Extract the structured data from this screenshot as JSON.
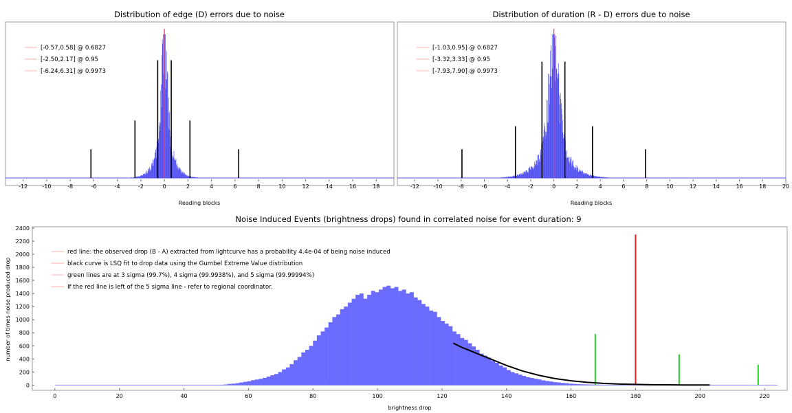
{
  "chart_data": [
    {
      "type": "bar",
      "title": "Distribution of edge (D) errors due to noise",
      "xlabel": "Reading blocks",
      "ylabel": "",
      "xlim": [
        -13.5,
        19.5
      ],
      "xticks": [
        "-12",
        "-10",
        "-8",
        "-6",
        "-4",
        "-2",
        "0",
        "2",
        "4",
        "6",
        "8",
        "10",
        "12",
        "14",
        "16",
        "18"
      ],
      "xtick_values": [
        -12,
        -10,
        -8,
        -6,
        -4,
        -2,
        0,
        2,
        4,
        6,
        8,
        10,
        12,
        14,
        16,
        18
      ],
      "grid": false,
      "legend": "top-left",
      "series": [
        {
          "name": "[-0.57,0.58] @ 0.6827",
          "color": "#ff9c9c"
        },
        {
          "name": "[-2.50,2.17] @ 0.95",
          "color": "#ff9c9c"
        },
        {
          "name": "[-6.24,6.31] @ 0.9973",
          "color": "#ff9c9c"
        }
      ],
      "histogram": {
        "center": 0,
        "width": 0.55,
        "tail_width": 3.0,
        "peak": 1.0,
        "color": "#4d4df0"
      },
      "markers": [
        {
          "x": -0.57,
          "height": 0.82
        },
        {
          "x": 0.58,
          "height": 0.82
        },
        {
          "x": -2.5,
          "height": 0.4
        },
        {
          "x": 2.17,
          "height": 0.4
        },
        {
          "x": -6.24,
          "height": 0.2
        },
        {
          "x": 6.31,
          "height": 0.2
        }
      ],
      "redline": 0
    },
    {
      "type": "bar",
      "title": "Distribution of duration (R - D) errors due to noise",
      "xlabel": "Reading blocks",
      "ylabel": "",
      "xlim": [
        -13.5,
        20
      ],
      "xticks": [
        "-12",
        "-10",
        "-8",
        "-6",
        "-4",
        "-2",
        "0",
        "2",
        "4",
        "6",
        "8",
        "10",
        "12",
        "14",
        "16",
        "18",
        "20"
      ],
      "xtick_values": [
        -12,
        -10,
        -8,
        -6,
        -4,
        -2,
        0,
        2,
        4,
        6,
        8,
        10,
        12,
        14,
        16,
        18,
        20
      ],
      "grid": false,
      "legend": "top-left",
      "series": [
        {
          "name": "[-1.03,0.95] @ 0.6827",
          "color": "#ff9c9c"
        },
        {
          "name": "[-3.32,3.33] @ 0.95",
          "color": "#ff9c9c"
        },
        {
          "name": "[-7.93,7.90] @ 0.9973",
          "color": "#ff9c9c"
        }
      ],
      "histogram": {
        "center": 0,
        "width": 0.9,
        "tail_width": 4.2,
        "peak": 1.0,
        "color": "#4d4df0"
      },
      "markers": [
        {
          "x": -1.03,
          "height": 0.81
        },
        {
          "x": 0.95,
          "height": 0.81
        },
        {
          "x": -3.32,
          "height": 0.36
        },
        {
          "x": 3.33,
          "height": 0.36
        },
        {
          "x": -7.93,
          "height": 0.2
        },
        {
          "x": 7.9,
          "height": 0.2
        }
      ],
      "redline": 0
    },
    {
      "type": "bar",
      "title": "Noise Induced Events (brightness drops) found in correlated noise for event duration: 9",
      "xlabel": "brightness drop",
      "ylabel": "number of times noise produced drop",
      "xlim": [
        -7,
        227
      ],
      "ylim": [
        -80,
        2420
      ],
      "xticks": [
        "0",
        "20",
        "40",
        "60",
        "80",
        "100",
        "120",
        "140",
        "160",
        "180",
        "200",
        "220"
      ],
      "xtick_values": [
        0,
        20,
        40,
        60,
        80,
        100,
        120,
        140,
        160,
        180,
        200,
        220
      ],
      "yticks": [
        "0",
        "200",
        "400",
        "600",
        "800",
        "1000",
        "1200",
        "1400",
        "1600",
        "1800",
        "2000",
        "2200",
        "2400"
      ],
      "ytick_values": [
        0,
        200,
        400,
        600,
        800,
        1000,
        1200,
        1400,
        1600,
        1800,
        2000,
        2200,
        2400
      ],
      "grid": false,
      "legend": "top-left",
      "legend_entries": [
        {
          "text": "red line: the observed drop (B - A) extracted from lightcurve has a probability 4.4e-04 of being noise induced",
          "color": "#ff9c9c"
        },
        {
          "text": "black curve is LSQ fit to drop data using the Gumbel Extreme Value distribution",
          "color": "#ff9c9c"
        },
        {
          "text": "green lines are at 3 sigma (99.7%), 4 sigma (99.9938%), and 5 sigma (99.99994%)",
          "color": "#ff9c9c"
        },
        {
          "text": "If the red line is left of the 5 sigma line - refer to regional coordinator.",
          "color": "#ff9c9c"
        }
      ],
      "bar_start": 50,
      "bar_width": 1.2,
      "bar_values": [
        3,
        5,
        10,
        18,
        22,
        30,
        40,
        50,
        60,
        75,
        85,
        95,
        110,
        130,
        150,
        170,
        200,
        240,
        270,
        320,
        380,
        430,
        500,
        540,
        600,
        680,
        760,
        820,
        880,
        960,
        1040,
        1080,
        1160,
        1200,
        1260,
        1320,
        1380,
        1400,
        1320,
        1380,
        1440,
        1420,
        1460,
        1500,
        1520,
        1480,
        1500,
        1440,
        1460,
        1400,
        1420,
        1340,
        1300,
        1240,
        1200,
        1140,
        1120,
        1040,
        980,
        940,
        900,
        820,
        780,
        720,
        690,
        640,
        590,
        540,
        480,
        450,
        420,
        370,
        340,
        300,
        270,
        230,
        200,
        180,
        160,
        140,
        120,
        110,
        96,
        86,
        72,
        62,
        55,
        45,
        40,
        33,
        28,
        22,
        18,
        14,
        12,
        10,
        8,
        7,
        6,
        5,
        5,
        4,
        3,
        3,
        3,
        2,
        2,
        2,
        2,
        1,
        1,
        1,
        1,
        1,
        1,
        1,
        1,
        1,
        1,
        1,
        1,
        1,
        1,
        1,
        1,
        1
      ],
      "bar_color": "#6b6bff",
      "fit_curve": {
        "x_start": 123.5,
        "x_end": 203,
        "color": "#000000"
      },
      "fit_points": [
        [
          123.5,
          640
        ],
        [
          126,
          580
        ],
        [
          130,
          500
        ],
        [
          135,
          400
        ],
        [
          140,
          300
        ],
        [
          145,
          215
        ],
        [
          150,
          150
        ],
        [
          155,
          100
        ],
        [
          160,
          66
        ],
        [
          165,
          42
        ],
        [
          170,
          26
        ],
        [
          175,
          16
        ],
        [
          180,
          10
        ],
        [
          185,
          6
        ],
        [
          190,
          4
        ],
        [
          195,
          2
        ],
        [
          200,
          1
        ],
        [
          203,
          1
        ]
      ],
      "red_line": {
        "x": 180,
        "y": 2300,
        "color": "#dd2222"
      },
      "green_lines": [
        {
          "x": 167.5,
          "y": 780,
          "color": "#22cc22"
        },
        {
          "x": 193.5,
          "y": 470,
          "color": "#22cc22"
        },
        {
          "x": 218,
          "y": 310,
          "color": "#22cc22"
        }
      ]
    }
  ]
}
